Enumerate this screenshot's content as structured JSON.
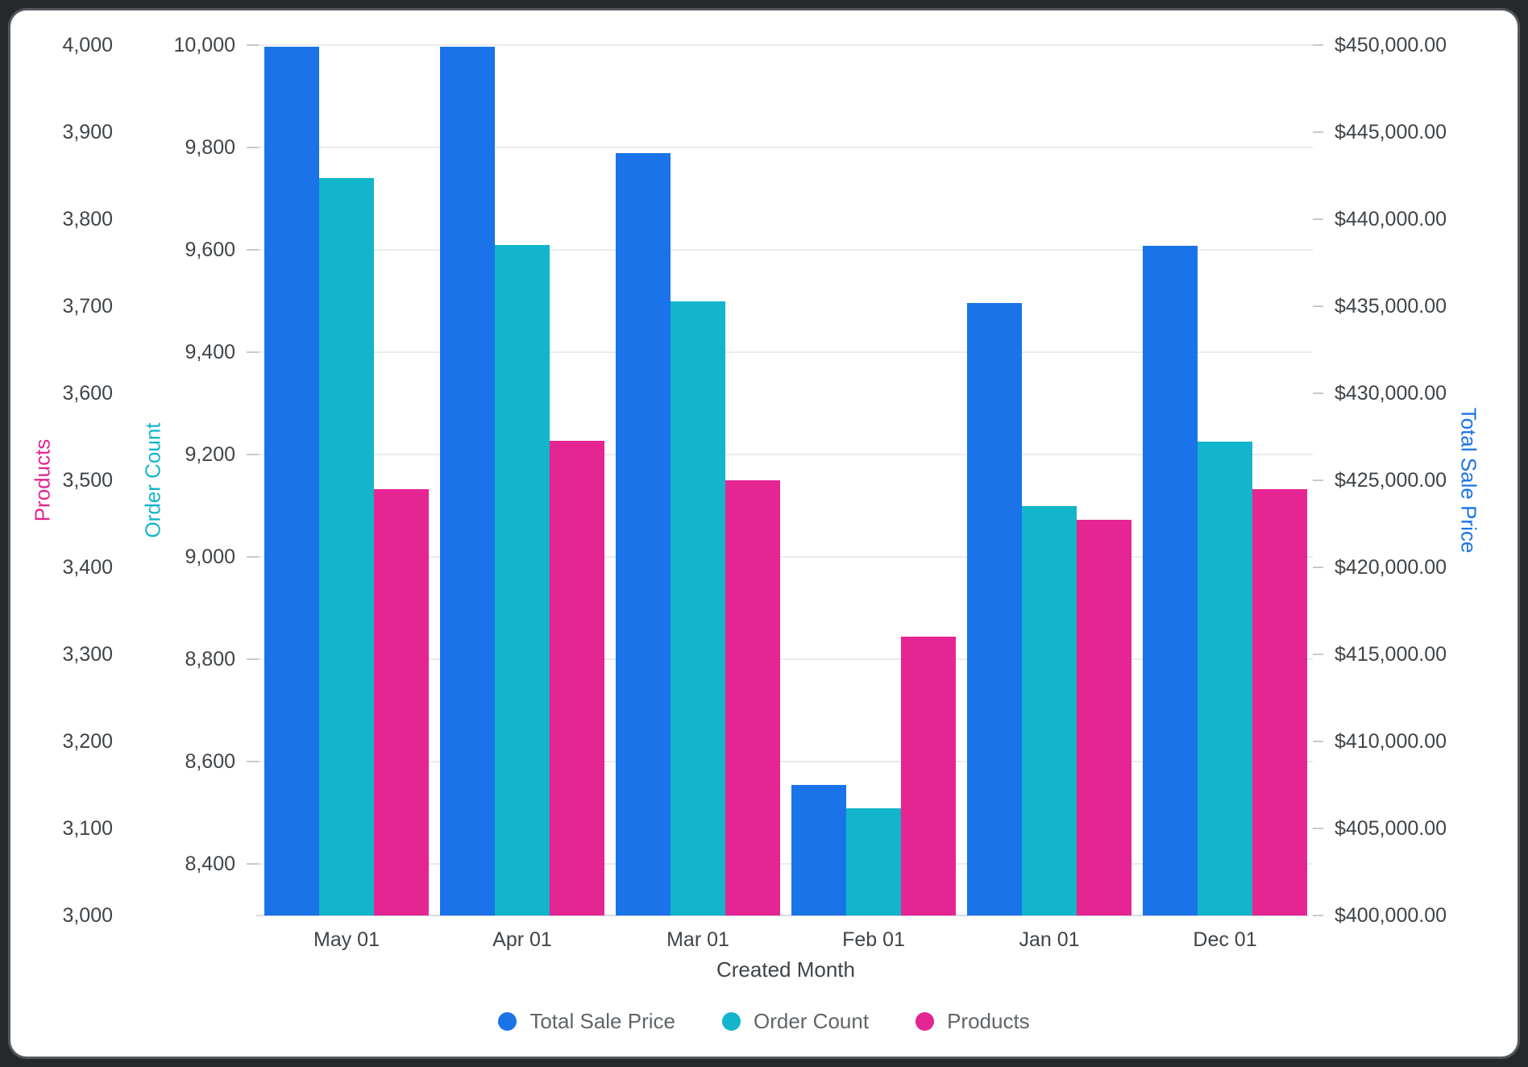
{
  "chart_data": {
    "type": "bar",
    "title": "",
    "xlabel": "Created Month",
    "categories": [
      "May 01",
      "Apr 01",
      "Mar 01",
      "Feb 01",
      "Jan 01",
      "Dec 01"
    ],
    "series": [
      {
        "name": "Total Sale Price",
        "color": "#1A73E8",
        "axis": "money",
        "values": [
          449900,
          449900,
          443800,
          407500,
          435200,
          438450
        ]
      },
      {
        "name": "Order Count",
        "color": "#12B5CB",
        "axis": "order",
        "values": [
          9740,
          9610,
          9500,
          8510,
          9100,
          9225
        ]
      },
      {
        "name": "Products",
        "color": "#E52592",
        "axis": "products",
        "values": [
          3490,
          3545,
          3500,
          3320,
          3455,
          3490
        ]
      }
    ],
    "axes": {
      "products": {
        "title": "Products",
        "color": "#E52592",
        "side": "left-outer",
        "min": 3000,
        "max": 4000,
        "ticks": [
          {
            "v": 4000,
            "label": "4,000"
          },
          {
            "v": 3900,
            "label": "3,900"
          },
          {
            "v": 3800,
            "label": "3,800"
          },
          {
            "v": 3700,
            "label": "3,700"
          },
          {
            "v": 3600,
            "label": "3,600"
          },
          {
            "v": 3500,
            "label": "3,500"
          },
          {
            "v": 3400,
            "label": "3,400"
          },
          {
            "v": 3300,
            "label": "3,300"
          },
          {
            "v": 3200,
            "label": "3,200"
          },
          {
            "v": 3100,
            "label": "3,100"
          },
          {
            "v": 3000,
            "label": "3,000"
          }
        ]
      },
      "order": {
        "title": "Order Count",
        "color": "#12B5CB",
        "side": "left-inner",
        "min": 8300,
        "max": 10000,
        "ticks": [
          {
            "v": 10000,
            "label": "10,000"
          },
          {
            "v": 9800,
            "label": "9,800"
          },
          {
            "v": 9600,
            "label": "9,600"
          },
          {
            "v": 9400,
            "label": "9,400"
          },
          {
            "v": 9200,
            "label": "9,200"
          },
          {
            "v": 9000,
            "label": "9,000"
          },
          {
            "v": 8800,
            "label": "8,800"
          },
          {
            "v": 8600,
            "label": "8,600"
          },
          {
            "v": 8400,
            "label": "8,400"
          }
        ]
      },
      "money": {
        "title": "Total Sale Price",
        "color": "#1A73E8",
        "side": "right",
        "min": 400000,
        "max": 450000,
        "ticks": [
          {
            "v": 450000,
            "label": "$450,000.00"
          },
          {
            "v": 445000,
            "label": "$445,000.00"
          },
          {
            "v": 440000,
            "label": "$440,000.00"
          },
          {
            "v": 435000,
            "label": "$435,000.00"
          },
          {
            "v": 430000,
            "label": "$430,000.00"
          },
          {
            "v": 425000,
            "label": "$425,000.00"
          },
          {
            "v": 420000,
            "label": "$420,000.00"
          },
          {
            "v": 415000,
            "label": "$415,000.00"
          },
          {
            "v": 410000,
            "label": "$410,000.00"
          },
          {
            "v": 405000,
            "label": "$405,000.00"
          },
          {
            "v": 400000,
            "label": "$400,000.00"
          }
        ]
      }
    },
    "legend": {
      "position": "bottom",
      "items": [
        "Total Sale Price",
        "Order Count",
        "Products"
      ]
    },
    "grid": "horizontal gridlines at Order Count ticks"
  }
}
